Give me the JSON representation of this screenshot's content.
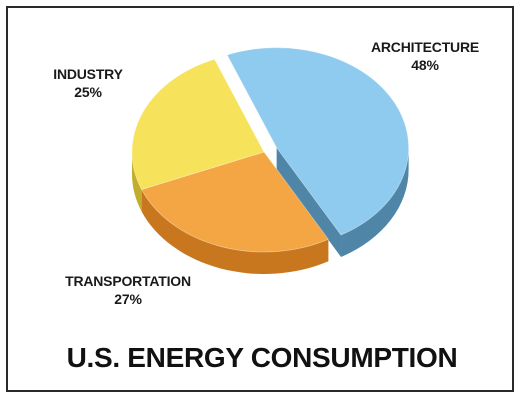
{
  "chart_data": {
    "type": "pie",
    "title": "U.S. ENERGY CONSUMPTION",
    "slices": [
      {
        "label": "ARCHITECTURE",
        "value": 48,
        "value_label": "48%",
        "color": "#8ecbee",
        "side_color": "#4f86a8"
      },
      {
        "label": "TRANSPORTATION",
        "value": 27,
        "value_label": "27%",
        "color": "#f4a544",
        "side_color": "#c9771f"
      },
      {
        "label": "INDUSTRY",
        "value": 25,
        "value_label": "25%",
        "color": "#f6e35b",
        "side_color": "#c2ad2c"
      }
    ],
    "exploded": "ARCHITECTURE",
    "legend": "none",
    "style": "3d"
  }
}
